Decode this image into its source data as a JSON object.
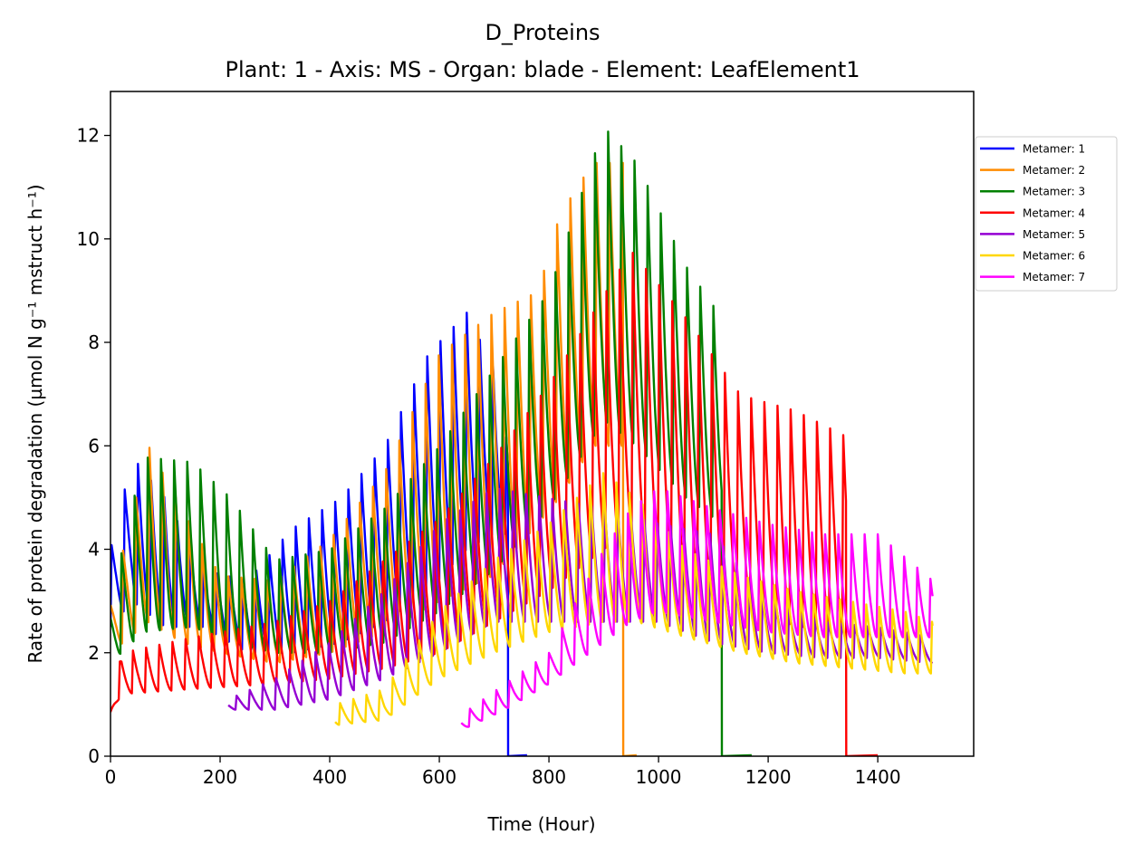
{
  "chart_data": {
    "type": "line",
    "title": "D_Proteins",
    "subtitle": "Plant: 1 - Axis: MS - Organ: blade - Element: LeafElement1",
    "xlabel": "Time (Hour)",
    "ylabel": "Rate of protein degradation (µmol N g⁻¹ mstruct h⁻¹)",
    "xlim": [
      0,
      1575
    ],
    "ylim": [
      0,
      12.85
    ],
    "xticks": [
      0,
      200,
      400,
      600,
      800,
      1000,
      1200,
      1400
    ],
    "yticks": [
      0,
      2,
      4,
      6,
      8,
      10,
      12
    ],
    "grid": false,
    "legend_position": "outside right, top",
    "series": [
      {
        "name": "Metamer: 1",
        "color": "#0000ff",
        "start": 0,
        "end": 725,
        "drop_to_zero_until": 760,
        "peaks": [
          [
            0,
            4.0
          ],
          [
            40,
            5.8
          ],
          [
            100,
            5.0
          ],
          [
            170,
            3.6
          ],
          [
            250,
            3.4
          ],
          [
            330,
            4.4
          ],
          [
            420,
            5.0
          ],
          [
            500,
            6.0
          ],
          [
            580,
            7.8
          ],
          [
            650,
            8.6
          ],
          [
            700,
            7.5
          ],
          [
            725,
            6.0
          ]
        ],
        "troughs": [
          [
            0,
            2.5
          ],
          [
            40,
            3.0
          ],
          [
            100,
            2.5
          ],
          [
            170,
            2.5
          ],
          [
            250,
            2.0
          ],
          [
            330,
            2.0
          ],
          [
            420,
            2.2
          ],
          [
            500,
            2.6
          ],
          [
            580,
            3.2
          ],
          [
            650,
            4.0
          ],
          [
            700,
            4.3
          ],
          [
            725,
            4.3
          ]
        ]
      },
      {
        "name": "Metamer: 2",
        "color": "#ff8c00",
        "start": 0,
        "end": 935,
        "drop_to_zero_until": 960,
        "peaks": [
          [
            0,
            3.0
          ],
          [
            70,
            6.0
          ],
          [
            130,
            4.8
          ],
          [
            200,
            3.5
          ],
          [
            300,
            3.4
          ],
          [
            400,
            4.2
          ],
          [
            500,
            5.5
          ],
          [
            600,
            7.8
          ],
          [
            700,
            8.6
          ],
          [
            780,
            9.0
          ],
          [
            820,
            10.5
          ],
          [
            880,
            11.5
          ],
          [
            930,
            11.5
          ]
        ],
        "troughs": [
          [
            0,
            2.0
          ],
          [
            70,
            2.6
          ],
          [
            130,
            2.2
          ],
          [
            200,
            2.0
          ],
          [
            300,
            1.8
          ],
          [
            400,
            2.0
          ],
          [
            500,
            2.4
          ],
          [
            600,
            3.0
          ],
          [
            700,
            3.5
          ],
          [
            780,
            4.5
          ],
          [
            820,
            5.0
          ],
          [
            880,
            6.0
          ],
          [
            930,
            6.0
          ]
        ]
      },
      {
        "name": "Metamer: 3",
        "color": "#008000",
        "start": 0,
        "end": 1115,
        "drop_to_zero_until": 1170,
        "peaks": [
          [
            0,
            3.0
          ],
          [
            60,
            5.8
          ],
          [
            150,
            5.7
          ],
          [
            220,
            5.0
          ],
          [
            300,
            3.8
          ],
          [
            400,
            4.0
          ],
          [
            500,
            4.8
          ],
          [
            600,
            6.0
          ],
          [
            700,
            7.5
          ],
          [
            800,
            9.0
          ],
          [
            900,
            12.2
          ],
          [
            960,
            11.5
          ],
          [
            1050,
            9.5
          ],
          [
            1115,
            8.5
          ]
        ],
        "troughs": [
          [
            0,
            1.8
          ],
          [
            60,
            2.4
          ],
          [
            150,
            2.5
          ],
          [
            220,
            2.2
          ],
          [
            300,
            2.0
          ],
          [
            400,
            2.0
          ],
          [
            500,
            2.2
          ],
          [
            600,
            2.8
          ],
          [
            700,
            3.6
          ],
          [
            800,
            4.8
          ],
          [
            900,
            6.5
          ],
          [
            960,
            6.0
          ],
          [
            1050,
            5.0
          ],
          [
            1115,
            4.5
          ]
        ]
      },
      {
        "name": "Metamer: 4",
        "color": "#ff0000",
        "start": 0,
        "end": 1342,
        "drop_to_zero_until": 1400,
        "peaks": [
          [
            0,
            0.9
          ],
          [
            20,
            2.0
          ],
          [
            150,
            2.3
          ],
          [
            300,
            2.6
          ],
          [
            400,
            3.0
          ],
          [
            500,
            3.8
          ],
          [
            600,
            4.6
          ],
          [
            700,
            5.8
          ],
          [
            800,
            7.2
          ],
          [
            950,
            9.8
          ],
          [
            1050,
            8.5
          ],
          [
            1150,
            7.0
          ],
          [
            1250,
            6.7
          ],
          [
            1342,
            6.2
          ]
        ],
        "troughs": [
          [
            0,
            0.8
          ],
          [
            20,
            1.2
          ],
          [
            150,
            1.3
          ],
          [
            300,
            1.4
          ],
          [
            400,
            1.5
          ],
          [
            500,
            1.7
          ],
          [
            600,
            2.0
          ],
          [
            700,
            2.6
          ],
          [
            800,
            3.2
          ],
          [
            950,
            4.4
          ],
          [
            1050,
            3.5
          ],
          [
            1150,
            3.0
          ],
          [
            1250,
            2.5
          ],
          [
            1342,
            2.5
          ]
        ]
      },
      {
        "name": "Metamer: 5",
        "color": "#9400d3",
        "start": 215,
        "end": 1500,
        "peaks": [
          [
            215,
            1.1
          ],
          [
            300,
            1.5
          ],
          [
            400,
            2.2
          ],
          [
            500,
            3.2
          ],
          [
            600,
            4.5
          ],
          [
            700,
            5.2
          ],
          [
            800,
            5.0
          ],
          [
            900,
            4.8
          ],
          [
            1000,
            4.5
          ],
          [
            1100,
            4.3
          ],
          [
            1200,
            3.0
          ],
          [
            1300,
            2.6
          ],
          [
            1400,
            2.5
          ],
          [
            1500,
            2.3
          ]
        ],
        "troughs": [
          [
            215,
            0.9
          ],
          [
            300,
            0.9
          ],
          [
            400,
            1.1
          ],
          [
            500,
            1.5
          ],
          [
            600,
            2.0
          ],
          [
            700,
            2.6
          ],
          [
            800,
            2.6
          ],
          [
            900,
            2.6
          ],
          [
            1000,
            2.6
          ],
          [
            1100,
            2.2
          ],
          [
            1200,
            2.0
          ],
          [
            1300,
            1.9
          ],
          [
            1400,
            1.9
          ],
          [
            1500,
            1.8
          ]
        ]
      },
      {
        "name": "Metamer: 6",
        "color": "#ffd700",
        "start": 410,
        "end": 1500,
        "peaks": [
          [
            410,
            1.0
          ],
          [
            500,
            1.3
          ],
          [
            600,
            2.8
          ],
          [
            700,
            3.8
          ],
          [
            800,
            4.5
          ],
          [
            900,
            5.5
          ],
          [
            960,
            5.0
          ],
          [
            1050,
            4.0
          ],
          [
            1150,
            3.5
          ],
          [
            1250,
            3.2
          ],
          [
            1350,
            3.0
          ],
          [
            1450,
            2.8
          ],
          [
            1500,
            2.6
          ]
        ],
        "troughs": [
          [
            410,
            0.6
          ],
          [
            500,
            0.7
          ],
          [
            600,
            1.5
          ],
          [
            700,
            2.0
          ],
          [
            800,
            2.4
          ],
          [
            900,
            2.6
          ],
          [
            960,
            2.6
          ],
          [
            1050,
            2.3
          ],
          [
            1150,
            2.0
          ],
          [
            1250,
            1.8
          ],
          [
            1350,
            1.7
          ],
          [
            1450,
            1.6
          ],
          [
            1500,
            1.6
          ]
        ]
      },
      {
        "name": "Metamer: 7",
        "color": "#ff00ff",
        "start": 640,
        "end": 1500,
        "peaks": [
          [
            640,
            0.8
          ],
          [
            720,
            1.4
          ],
          [
            800,
            2.0
          ],
          [
            850,
            3.0
          ],
          [
            900,
            4.0
          ],
          [
            950,
            4.8
          ],
          [
            1000,
            5.2
          ],
          [
            1100,
            4.8
          ],
          [
            1200,
            4.5
          ],
          [
            1300,
            4.3
          ],
          [
            1400,
            4.3
          ],
          [
            1500,
            3.4
          ]
        ],
        "troughs": [
          [
            640,
            0.5
          ],
          [
            720,
            0.9
          ],
          [
            800,
            1.4
          ],
          [
            850,
            1.8
          ],
          [
            900,
            2.2
          ],
          [
            950,
            2.6
          ],
          [
            1000,
            2.8
          ],
          [
            1100,
            2.6
          ],
          [
            1200,
            2.4
          ],
          [
            1300,
            2.3
          ],
          [
            1400,
            2.3
          ],
          [
            1500,
            2.3
          ]
        ]
      }
    ]
  }
}
